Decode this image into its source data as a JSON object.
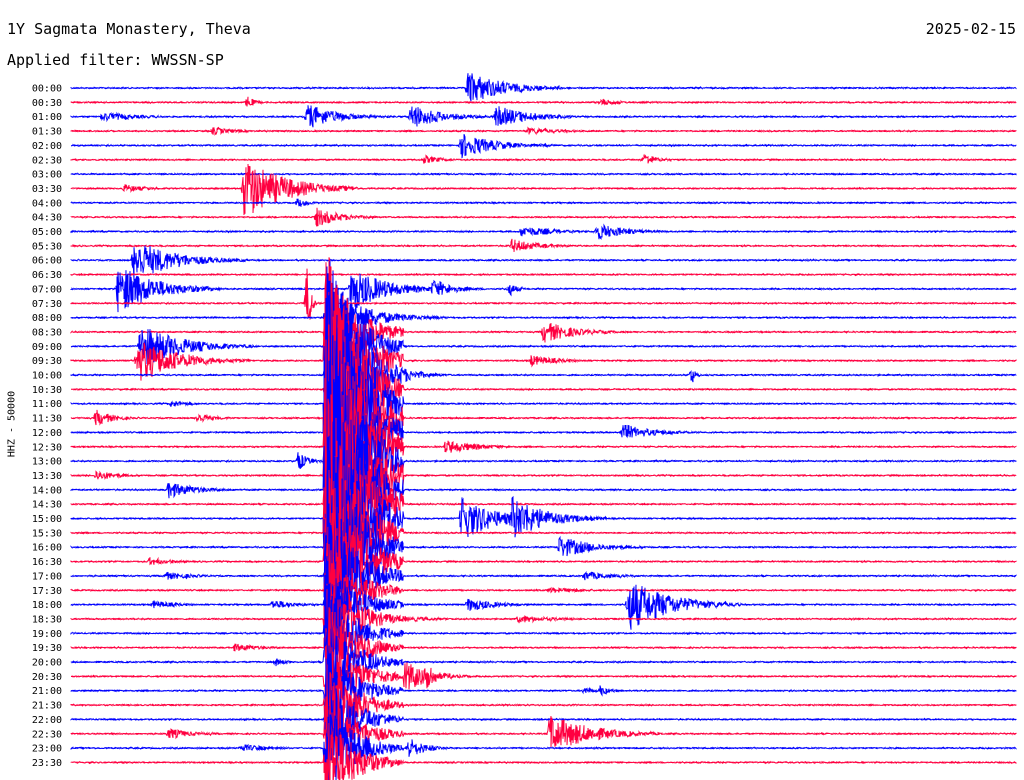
{
  "header": {
    "station": "1Y Sagmata Monastery, Theva",
    "date": "2025-02-15",
    "filter": "Applied filter: WWSSN-SP",
    "channel_label": "HHZ - 50000"
  },
  "colors": {
    "even_trace": "#0000ff",
    "odd_trace": "#ff0040",
    "background": "#ffffff",
    "text": "#000000"
  },
  "chart_data": {
    "type": "line",
    "title": "1Y Sagmata Monastery, Theva",
    "subtitle": "Applied filter: WWSSN-SP",
    "ylabel": "HHZ - 50000",
    "xlabel": "",
    "x_span_minutes": 30,
    "traces": [
      "00:00",
      "00:30",
      "01:00",
      "01:30",
      "02:00",
      "02:30",
      "03:00",
      "03:30",
      "04:00",
      "04:30",
      "05:00",
      "05:30",
      "06:00",
      "06:30",
      "07:00",
      "07:30",
      "08:00",
      "08:30",
      "09:00",
      "09:30",
      "10:00",
      "10:30",
      "11:00",
      "11:30",
      "12:00",
      "12:30",
      "13:00",
      "13:30",
      "14:00",
      "14:30",
      "15:00",
      "15:30",
      "16:00",
      "16:30",
      "17:00",
      "17:30",
      "18:00",
      "18:30",
      "19:00",
      "19:30",
      "20:00",
      "20:30",
      "21:00",
      "21:30",
      "22:00",
      "22:30",
      "23:00",
      "23:30"
    ],
    "events": [
      {
        "trace": 0,
        "minute": 12.6,
        "amp": 1.2,
        "dur": 1.1
      },
      {
        "trace": 1,
        "minute": 5.6,
        "amp": 0.5,
        "dur": 0.2
      },
      {
        "trace": 1,
        "minute": 16.8,
        "amp": 0.25,
        "dur": 0.6
      },
      {
        "trace": 2,
        "minute": 1.0,
        "amp": 0.35,
        "dur": 1.0
      },
      {
        "trace": 2,
        "minute": 7.5,
        "amp": 0.9,
        "dur": 0.9
      },
      {
        "trace": 2,
        "minute": 10.8,
        "amp": 0.9,
        "dur": 0.9
      },
      {
        "trace": 2,
        "minute": 13.5,
        "amp": 0.8,
        "dur": 1.0
      },
      {
        "trace": 3,
        "minute": 4.5,
        "amp": 0.3,
        "dur": 0.6
      },
      {
        "trace": 3,
        "minute": 14.5,
        "amp": 0.25,
        "dur": 1.0
      },
      {
        "trace": 4,
        "minute": 12.4,
        "amp": 0.9,
        "dur": 1.0
      },
      {
        "trace": 5,
        "minute": 11.2,
        "amp": 0.3,
        "dur": 0.6
      },
      {
        "trace": 5,
        "minute": 18.2,
        "amp": 0.45,
        "dur": 0.4
      },
      {
        "trace": 7,
        "minute": 5.5,
        "amp": 2.2,
        "dur": 1.2
      },
      {
        "trace": 7,
        "minute": 1.7,
        "amp": 0.3,
        "dur": 0.6
      },
      {
        "trace": 8,
        "minute": 7.2,
        "amp": 0.4,
        "dur": 0.3
      },
      {
        "trace": 9,
        "minute": 7.8,
        "amp": 0.7,
        "dur": 0.7
      },
      {
        "trace": 10,
        "minute": 14.3,
        "amp": 0.4,
        "dur": 1.0
      },
      {
        "trace": 10,
        "minute": 16.7,
        "amp": 0.6,
        "dur": 0.9
      },
      {
        "trace": 11,
        "minute": 14.0,
        "amp": 0.5,
        "dur": 0.8
      },
      {
        "trace": 12,
        "minute": 2.0,
        "amp": 1.5,
        "dur": 1.2
      },
      {
        "trace": 14,
        "minute": 1.5,
        "amp": 1.8,
        "dur": 1.1
      },
      {
        "trace": 14,
        "minute": 8.9,
        "amp": 1.6,
        "dur": 1.0
      },
      {
        "trace": 14,
        "minute": 11.5,
        "amp": 0.7,
        "dur": 0.6
      },
      {
        "trace": 14,
        "minute": 13.9,
        "amp": 0.6,
        "dur": 0.2
      },
      {
        "trace": 15,
        "minute": 7.5,
        "amp": 3.0,
        "dur": 0.1
      },
      {
        "trace": 16,
        "minute": 10.5,
        "amp": 0.3,
        "dur": 0.8
      },
      {
        "trace": 17,
        "minute": 15.0,
        "amp": 0.8,
        "dur": 0.9
      },
      {
        "trace": 18,
        "minute": 2.2,
        "amp": 1.6,
        "dur": 1.2
      },
      {
        "trace": 19,
        "minute": 2.1,
        "amp": 1.6,
        "dur": 1.2
      },
      {
        "trace": 19,
        "minute": 14.6,
        "amp": 0.4,
        "dur": 0.8
      },
      {
        "trace": 20,
        "minute": 10.6,
        "amp": 0.5,
        "dur": 0.6
      },
      {
        "trace": 20,
        "minute": 19.7,
        "amp": 0.8,
        "dur": 0.1
      },
      {
        "trace": 22,
        "minute": 3.2,
        "amp": 0.3,
        "dur": 0.4
      },
      {
        "trace": 23,
        "minute": 0.8,
        "amp": 0.6,
        "dur": 0.5
      },
      {
        "trace": 23,
        "minute": 4.0,
        "amp": 0.4,
        "dur": 0.5
      },
      {
        "trace": 24,
        "minute": 17.5,
        "amp": 0.6,
        "dur": 0.9
      },
      {
        "trace": 25,
        "minute": 11.9,
        "amp": 0.5,
        "dur": 0.9
      },
      {
        "trace": 26,
        "minute": 7.2,
        "amp": 0.7,
        "dur": 0.3
      },
      {
        "trace": 27,
        "minute": 0.8,
        "amp": 0.4,
        "dur": 0.6
      },
      {
        "trace": 28,
        "minute": 3.1,
        "amp": 0.6,
        "dur": 0.8
      },
      {
        "trace": 30,
        "minute": 12.4,
        "amp": 1.6,
        "dur": 1.0
      },
      {
        "trace": 30,
        "minute": 14.0,
        "amp": 1.6,
        "dur": 1.0
      },
      {
        "trace": 32,
        "minute": 15.5,
        "amp": 0.8,
        "dur": 1.0
      },
      {
        "trace": 33,
        "minute": 2.5,
        "amp": 0.3,
        "dur": 0.6
      },
      {
        "trace": 34,
        "minute": 3.0,
        "amp": 0.3,
        "dur": 0.8
      },
      {
        "trace": 34,
        "minute": 16.3,
        "amp": 0.35,
        "dur": 0.8
      },
      {
        "trace": 35,
        "minute": 15.2,
        "amp": 0.2,
        "dur": 1.0
      },
      {
        "trace": 36,
        "minute": 17.7,
        "amp": 1.9,
        "dur": 1.2
      },
      {
        "trace": 36,
        "minute": 12.6,
        "amp": 0.5,
        "dur": 0.8
      },
      {
        "trace": 36,
        "minute": 6.4,
        "amp": 0.35,
        "dur": 0.7
      },
      {
        "trace": 36,
        "minute": 2.6,
        "amp": 0.3,
        "dur": 0.7
      },
      {
        "trace": 37,
        "minute": 10.2,
        "amp": 0.3,
        "dur": 1.0
      },
      {
        "trace": 37,
        "minute": 14.2,
        "amp": 0.3,
        "dur": 1.0
      },
      {
        "trace": 39,
        "minute": 5.2,
        "amp": 0.3,
        "dur": 0.8
      },
      {
        "trace": 40,
        "minute": 6.5,
        "amp": 0.3,
        "dur": 0.3
      },
      {
        "trace": 41,
        "minute": 10.6,
        "amp": 1.2,
        "dur": 0.7
      },
      {
        "trace": 41,
        "minute": 11.3,
        "amp": 1.6,
        "dur": 0.2
      },
      {
        "trace": 42,
        "minute": 16.3,
        "amp": 0.3,
        "dur": 0.3
      },
      {
        "trace": 42,
        "minute": 16.8,
        "amp": 0.4,
        "dur": 0.3
      },
      {
        "trace": 44,
        "minute": 9.6,
        "amp": 0.2,
        "dur": 0.6
      },
      {
        "trace": 45,
        "minute": 15.2,
        "amp": 1.4,
        "dur": 1.2
      },
      {
        "trace": 45,
        "minute": 3.1,
        "amp": 0.4,
        "dur": 0.7
      },
      {
        "trace": 46,
        "minute": 5.4,
        "amp": 0.3,
        "dur": 0.8
      },
      {
        "trace": 46,
        "minute": 10.7,
        "amp": 0.8,
        "dur": 0.5
      }
    ],
    "teleseism": {
      "start_trace": 16,
      "end_trace": 47,
      "minute": 8.1,
      "amp": 14,
      "coda_minutes": 2.0
    }
  }
}
